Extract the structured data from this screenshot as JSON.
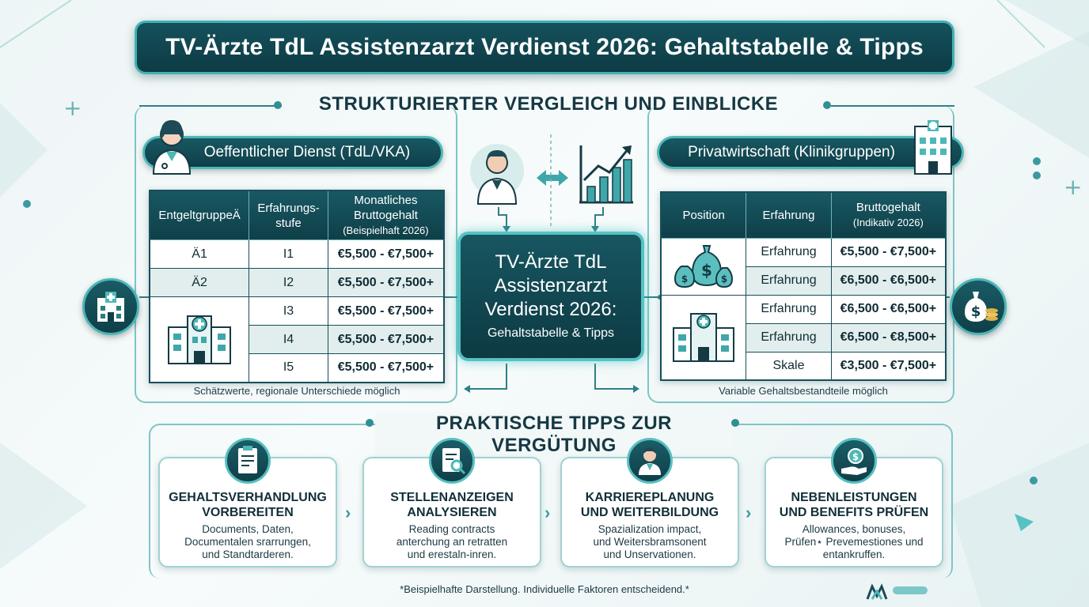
{
  "title": "TV-Ärzte TdL Assistenzarzt Verdienst 2026: Gehaltstabelle & Tipps",
  "section_compare": "STRUKTURIERTER VERGLEICH UND EINBLICKE",
  "left_panel": {
    "label": "Oeffentlicher Dienst (TdL/VKA)",
    "headers": [
      "EntgeltgruppeÄ",
      "Erfahrungs-\nstufe",
      "Monatliches",
      "Bruttogehalt",
      "(Beispielhaft 2026)"
    ],
    "rows": [
      {
        "group": "Ä1",
        "stufe": "I1",
        "value": "€5,500 - €7,500+"
      },
      {
        "group": "Ä2",
        "stufe": "I2",
        "value": "€5,500 - €7,500+"
      },
      {
        "group": "",
        "stufe": "I3",
        "value": "€5,500 - €7,500+"
      },
      {
        "group": "",
        "stufe": "I4",
        "value": "€5,500 - €7,500+"
      },
      {
        "group": "",
        "stufe": "I5",
        "value": "€5,500 - €7,500+"
      }
    ],
    "note": "Schätzwerte, regionale Unterschiede möglich"
  },
  "right_panel": {
    "label": "Privatwirtschaft (Klinikgruppen)",
    "headers": [
      "Position",
      "Erfahrung",
      "Bruttogehalt",
      "(Indikativ 2026)"
    ],
    "rows": [
      {
        "exp": "Erfahrung",
        "value": "€5,500 - €7,500+"
      },
      {
        "exp": "Erfahrung",
        "value": "€6,500 - €6,500+"
      },
      {
        "exp": "Erfahrung",
        "value": "€6,500 - €6,500+"
      },
      {
        "exp": "Erfahrung",
        "value": "€6,500 - €8,500+"
      },
      {
        "exp": "Skale",
        "value": "€3,500 - €7,500+"
      }
    ],
    "note": "Variable Gehaltsbestandteile möglich"
  },
  "center": {
    "line1": "TV-Ärzte TdL",
    "line2": "Assistenzarzt",
    "line3": "Verdienst 2026:",
    "line4": "Gehaltstabelle & Tipps"
  },
  "section_tips": "PRAKTISCHE TIPPS ZUR VERGÜTUNG",
  "tips": [
    {
      "icon": "clipboard-icon",
      "title1": "GEHALTSVERHANDLUNG",
      "title2": "VORBEREITEN",
      "b1": "Documents, Daten,",
      "b2": "Documentalen srarrungen,",
      "b3": "und Standtarderen."
    },
    {
      "icon": "document-search-icon",
      "title1": "STELLENANZEIGEN",
      "title2": "ANALYSIEREN",
      "b1": "Reading contracts",
      "b2": "anterchung an retratten",
      "b3": "und erestaln-inren."
    },
    {
      "icon": "doctor-icon",
      "title1": "KARRIEREPLANUNG",
      "title2": "UND WEITERBILDUNG",
      "b1": "Spazialization impact,",
      "b2": "und Weitersbramsonent",
      "b3": "und Unservationen."
    },
    {
      "icon": "benefits-hand-icon",
      "title1": "NEBENLEISTUNGEN",
      "title2": "UND BENEFITS PRÜFEN",
      "b1": "Allowances, bonuses,",
      "b2": "Prüfen⋆ Prevemestiones und",
      "b3": "entankruffen."
    }
  ],
  "footnote": "*Beispielhafte Darstellung. Individuelle Faktoren entscheidend.*",
  "colors": {
    "primary": "#0f3f48",
    "accent": "#4cb8b8",
    "background": "#eef5f6"
  }
}
